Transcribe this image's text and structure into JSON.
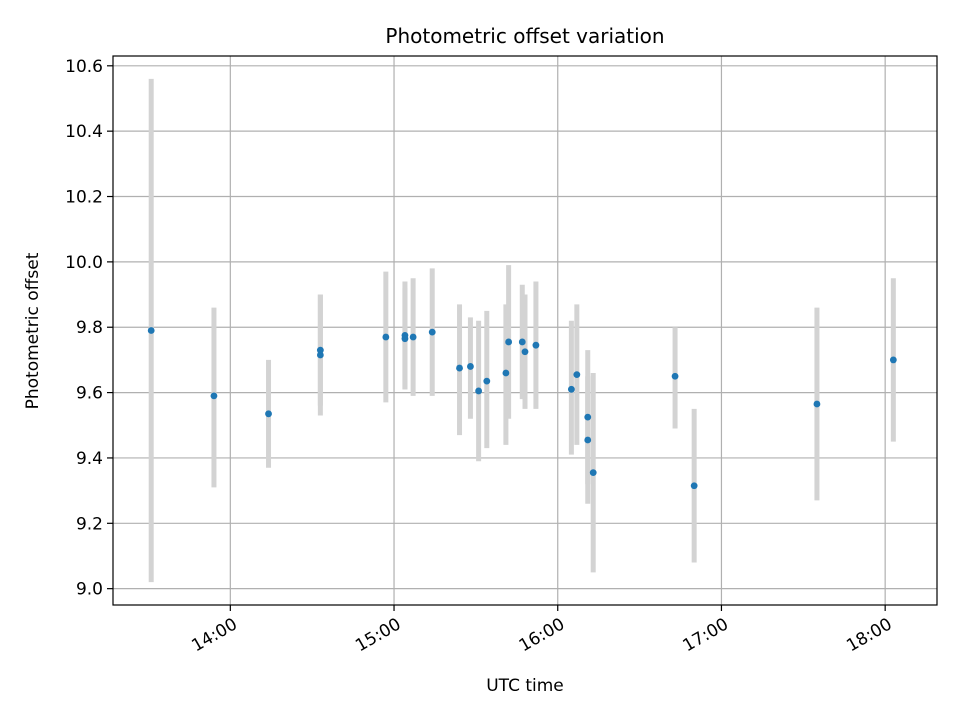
{
  "chart_data": {
    "type": "scatter",
    "title": "Photometric offset variation",
    "xlabel": "UTC time",
    "ylabel": "Photometric offset",
    "x_axis": {
      "kind": "time",
      "range": [
        "13:17",
        "18:19"
      ],
      "ticks": [
        "14:00",
        "15:00",
        "16:00",
        "17:00",
        "18:00"
      ]
    },
    "y_axis": {
      "range": [
        8.95,
        10.63
      ],
      "ticks": [
        "9.0",
        "9.2",
        "9.4",
        "9.6",
        "9.8",
        "10.0",
        "10.2",
        "10.4",
        "10.6"
      ]
    },
    "grid": true,
    "legend": null,
    "colors": {
      "point": "#1f77b4",
      "errorbar": "#d3d3d3",
      "grid": "#b0b0b0"
    },
    "points": [
      {
        "x": "13:31",
        "y": 9.79,
        "ylow": 9.02,
        "yhigh": 10.56
      },
      {
        "x": "13:54",
        "y": 9.59,
        "ylow": 9.31,
        "yhigh": 9.86
      },
      {
        "x": "14:14",
        "y": 9.535,
        "ylow": 9.37,
        "yhigh": 9.7
      },
      {
        "x": "14:33",
        "y": 9.715,
        "ylow": 9.53,
        "yhigh": 9.9
      },
      {
        "x": "14:33",
        "y": 9.73,
        "ylow": 9.56,
        "yhigh": 9.9
      },
      {
        "x": "14:57",
        "y": 9.77,
        "ylow": 9.57,
        "yhigh": 9.97
      },
      {
        "x": "15:04",
        "y": 9.775,
        "ylow": 9.61,
        "yhigh": 9.94
      },
      {
        "x": "15:04",
        "y": 9.765,
        "ylow": 9.61,
        "yhigh": 9.92
      },
      {
        "x": "15:07",
        "y": 9.77,
        "ylow": 9.59,
        "yhigh": 9.95
      },
      {
        "x": "15:14",
        "y": 9.785,
        "ylow": 9.59,
        "yhigh": 9.98
      },
      {
        "x": "15:24",
        "y": 9.675,
        "ylow": 9.47,
        "yhigh": 9.87
      },
      {
        "x": "15:28",
        "y": 9.68,
        "ylow": 9.52,
        "yhigh": 9.83
      },
      {
        "x": "15:31",
        "y": 9.605,
        "ylow": 9.39,
        "yhigh": 9.82
      },
      {
        "x": "15:34",
        "y": 9.635,
        "ylow": 9.43,
        "yhigh": 9.85
      },
      {
        "x": "15:41",
        "y": 9.66,
        "ylow": 9.44,
        "yhigh": 9.87
      },
      {
        "x": "15:42",
        "y": 9.755,
        "ylow": 9.52,
        "yhigh": 9.99
      },
      {
        "x": "15:47",
        "y": 9.755,
        "ylow": 9.58,
        "yhigh": 9.93
      },
      {
        "x": "15:48",
        "y": 9.725,
        "ylow": 9.55,
        "yhigh": 9.9
      },
      {
        "x": "15:52",
        "y": 9.745,
        "ylow": 9.55,
        "yhigh": 9.94
      },
      {
        "x": "16:05",
        "y": 9.61,
        "ylow": 9.41,
        "yhigh": 9.82
      },
      {
        "x": "16:07",
        "y": 9.655,
        "ylow": 9.44,
        "yhigh": 9.87
      },
      {
        "x": "16:11",
        "y": 9.525,
        "ylow": 9.32,
        "yhigh": 9.73
      },
      {
        "x": "16:11",
        "y": 9.455,
        "ylow": 9.26,
        "yhigh": 9.65
      },
      {
        "x": "16:13",
        "y": 9.355,
        "ylow": 9.05,
        "yhigh": 9.66
      },
      {
        "x": "16:43",
        "y": 9.65,
        "ylow": 9.49,
        "yhigh": 9.8
      },
      {
        "x": "16:50",
        "y": 9.315,
        "ylow": 9.08,
        "yhigh": 9.55
      },
      {
        "x": "17:35",
        "y": 9.565,
        "ylow": 9.27,
        "yhigh": 9.86
      },
      {
        "x": "18:03",
        "y": 9.7,
        "ylow": 9.45,
        "yhigh": 9.95
      }
    ]
  }
}
